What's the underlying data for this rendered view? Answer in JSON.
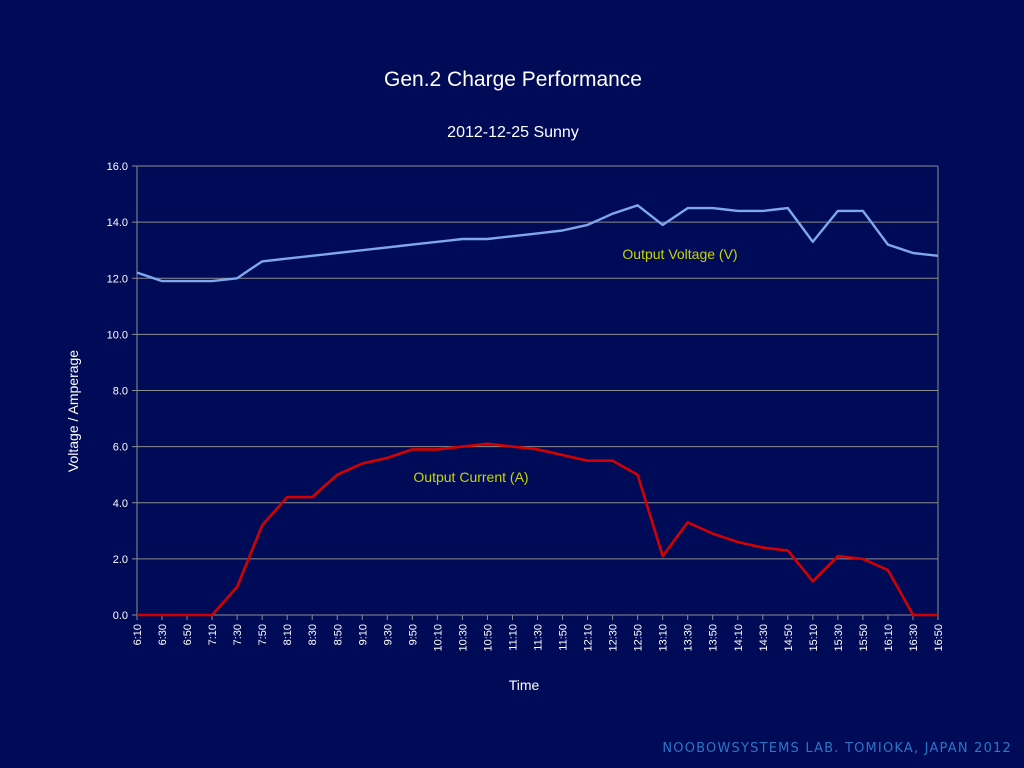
{
  "chart_data": {
    "type": "line",
    "title": "Gen.2 Charge Performance",
    "subtitle": "2012-12-25 Sunny",
    "xlabel": "Time",
    "ylabel": "Voltage / Amperage",
    "ylim": [
      0,
      16
    ],
    "yticks": [
      "0.0",
      "2.0",
      "4.0",
      "6.0",
      "8.0",
      "10.0",
      "12.0",
      "14.0",
      "16.0"
    ],
    "grid": true,
    "categories": [
      "6:10",
      "6:20",
      "6:30",
      "6:40",
      "6:50",
      "7:00",
      "7:10",
      "7:20",
      "7:30",
      "7:40",
      "7:50",
      "8:00",
      "8:10",
      "8:20",
      "8:30",
      "8:40",
      "8:50",
      "9:00",
      "9:10",
      "9:20",
      "9:30",
      "9:40",
      "9:50",
      "10:00",
      "10:10",
      "10:20",
      "10:30",
      "10:40",
      "10:50",
      "11:00",
      "11:10",
      "11:20",
      "11:30",
      "11:40",
      "11:50",
      "12:00",
      "12:10",
      "12:20",
      "12:30",
      "12:40",
      "12:50",
      "13:00",
      "13:10",
      "13:20",
      "13:30",
      "13:40",
      "13:50",
      "14:00",
      "14:10",
      "14:20",
      "14:30",
      "14:40",
      "14:50",
      "15:00",
      "15:10",
      "15:20",
      "15:30",
      "15:40",
      "15:50",
      "16:00",
      "16:10",
      "16:20",
      "16:30",
      "16:40",
      "16:50"
    ],
    "tick_labels": [
      "6:10",
      "6:30",
      "6:50",
      "7:10",
      "7:30",
      "7:50",
      "8:10",
      "8:30",
      "8:50",
      "9:10",
      "9:30",
      "9:50",
      "10:10",
      "10:30",
      "10:50",
      "11:10",
      "11:30",
      "11:50",
      "12:10",
      "12:30",
      "12:50",
      "13:10",
      "13:30",
      "13:50",
      "14:10",
      "14:30",
      "14:50",
      "15:10",
      "15:30",
      "15:50",
      "16:10",
      "16:30",
      "16:50"
    ],
    "series": [
      {
        "name": "Output Voltage (V)",
        "color": "#7fa7ee",
        "values": [
          12.2,
          12.05,
          11.9,
          11.9,
          11.9,
          11.9,
          11.9,
          11.95,
          12.0,
          12.3,
          12.6,
          12.65,
          12.7,
          12.75,
          12.8,
          12.85,
          12.9,
          12.95,
          13.0,
          13.05,
          13.1,
          13.15,
          13.2,
          13.25,
          13.3,
          13.35,
          13.4,
          13.4,
          13.4,
          13.45,
          13.5,
          13.55,
          13.6,
          13.65,
          13.7,
          13.8,
          13.9,
          14.1,
          14.3,
          14.45,
          14.6,
          14.25,
          13.9,
          14.2,
          14.5,
          14.5,
          14.5,
          14.45,
          14.4,
          14.4,
          14.4,
          14.45,
          14.5,
          13.9,
          13.3,
          13.85,
          14.4,
          14.4,
          14.4,
          13.8,
          13.2,
          13.05,
          12.9,
          12.85,
          12.8
        ]
      },
      {
        "name": "Output Current (A)",
        "color": "#d40000",
        "values": [
          0.0,
          0.0,
          0.0,
          0.0,
          0.0,
          0.0,
          0.0,
          0.5,
          1.0,
          2.1,
          3.2,
          3.7,
          4.2,
          4.2,
          4.2,
          4.6,
          5.0,
          5.2,
          5.4,
          5.5,
          5.6,
          5.75,
          5.9,
          5.9,
          5.9,
          5.95,
          6.0,
          6.05,
          6.1,
          6.05,
          6.0,
          5.95,
          5.9,
          5.8,
          5.7,
          5.6,
          5.5,
          5.5,
          5.5,
          5.25,
          5.0,
          3.55,
          2.1,
          2.7,
          3.3,
          3.1,
          2.9,
          2.75,
          2.6,
          2.5,
          2.4,
          2.35,
          2.3,
          1.75,
          1.2,
          1.65,
          2.1,
          2.05,
          2.0,
          1.8,
          1.6,
          0.8,
          0.0,
          0.0,
          0.0
        ]
      }
    ]
  },
  "credit": "NOOBOWSYSTEMS LAB. TOMIOKA, JAPAN 2012",
  "colors": {
    "background": "#000b57",
    "grid": "#8c8c8c",
    "label_text": "#c8d400",
    "credit_text": "#2f74c7"
  }
}
